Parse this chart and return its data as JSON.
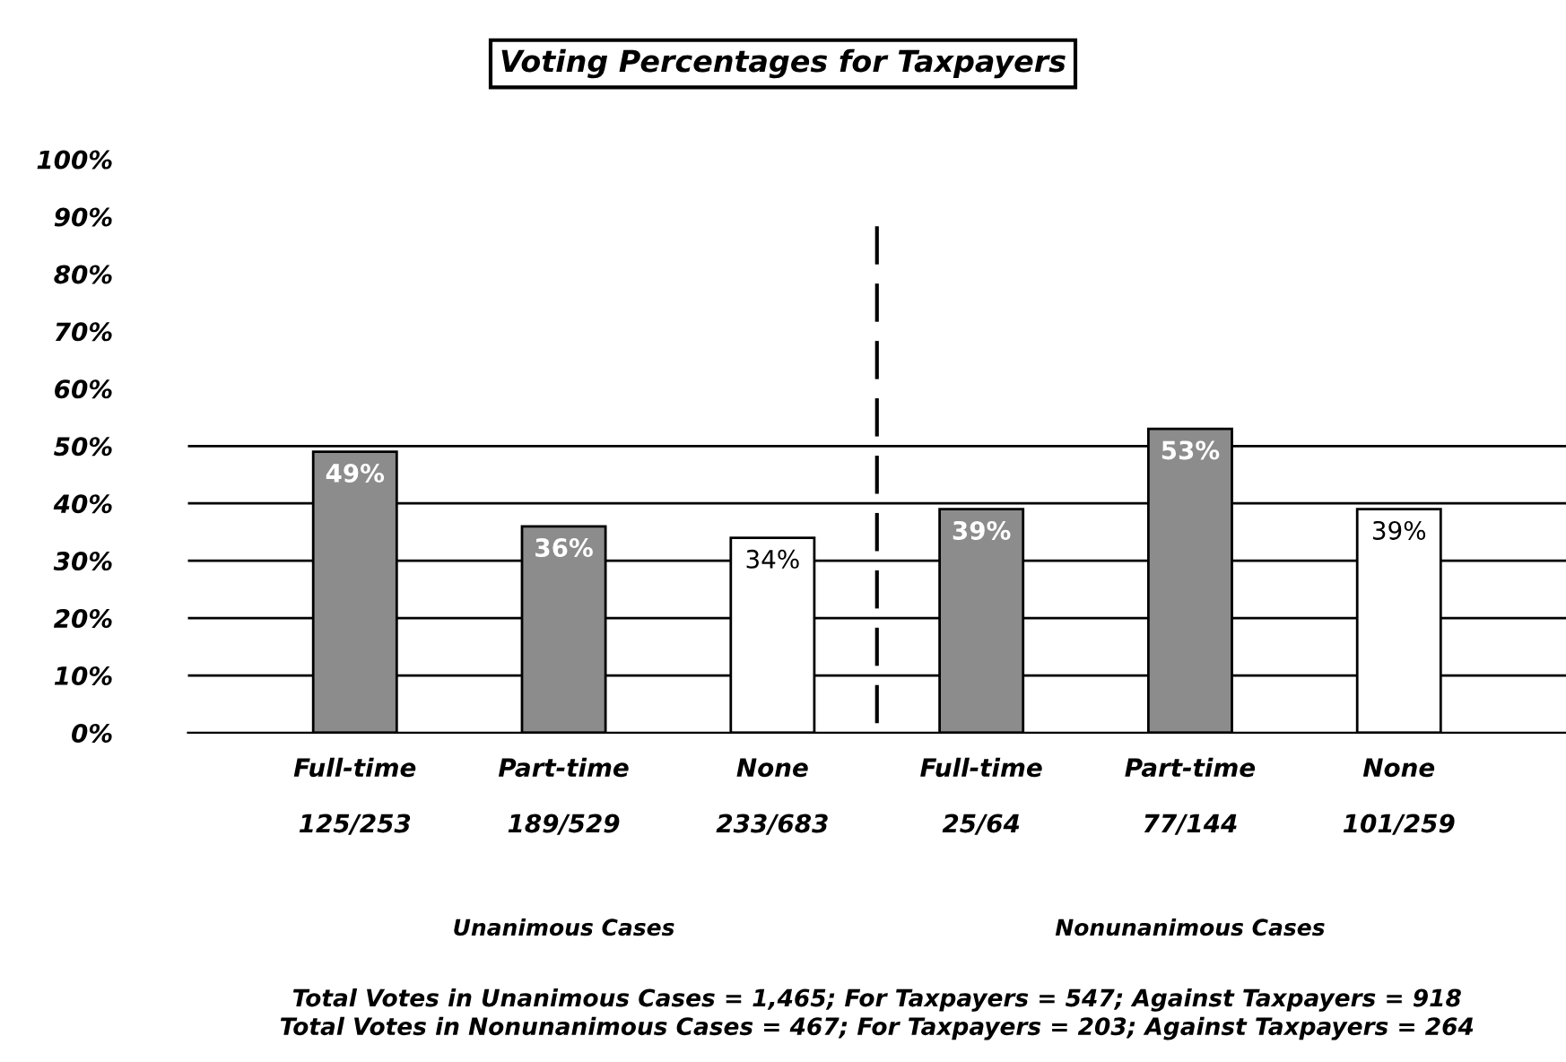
{
  "chart_data": {
    "type": "bar",
    "title": "Voting Percentages for Taxpayers",
    "categories": [
      "Full-time\n\n125/253",
      "Part-time\n\n189/529",
      "None\n\n233/683",
      "Full-time\n\n25/64",
      "Part-time\n\n77/144",
      "None\n\n101/259"
    ],
    "values": [
      49,
      36,
      34,
      39,
      53,
      39
    ],
    "colors": [
      "#8c8c8c",
      "#8c8c8c",
      "#ffffff",
      "#8c8c8c",
      "#8c8c8c",
      "#ffffff"
    ],
    "value_labels": [
      "49%",
      "36%",
      "34%",
      "39%",
      "53%",
      "39%"
    ],
    "ylim": [
      0,
      100
    ],
    "yticks": [
      {
        "value": 0,
        "label": "0%"
      },
      {
        "value": 10,
        "label": "10%"
      },
      {
        "value": 20,
        "label": "20%"
      },
      {
        "value": 30,
        "label": "30%"
      },
      {
        "value": 40,
        "label": "40%"
      },
      {
        "value": 50,
        "label": "50%"
      },
      {
        "value": 60,
        "label": "60%"
      },
      {
        "value": 70,
        "label": "70%"
      },
      {
        "value": 80,
        "label": "80%"
      },
      {
        "value": 90,
        "label": "90%"
      },
      {
        "value": 100,
        "label": "100%"
      }
    ],
    "ref_lines": [
      {
        "axis": "y",
        "value": 10
      },
      {
        "axis": "y",
        "value": 20
      },
      {
        "axis": "y",
        "value": 30
      },
      {
        "axis": "y",
        "value": 40
      },
      {
        "axis": "y",
        "value": 50
      }
    ],
    "annotations": [
      "Unanimous Cases",
      "Nonunanimous Cases",
      "Total Votes in Unanimous Cases = 1,465; For Taxpayers = 547; Against Taxpayers = 918\nTotal Votes in Nonunanimous Cases = 467; For Taxpayers = 203; Against Taxpayers = 264"
    ]
  }
}
